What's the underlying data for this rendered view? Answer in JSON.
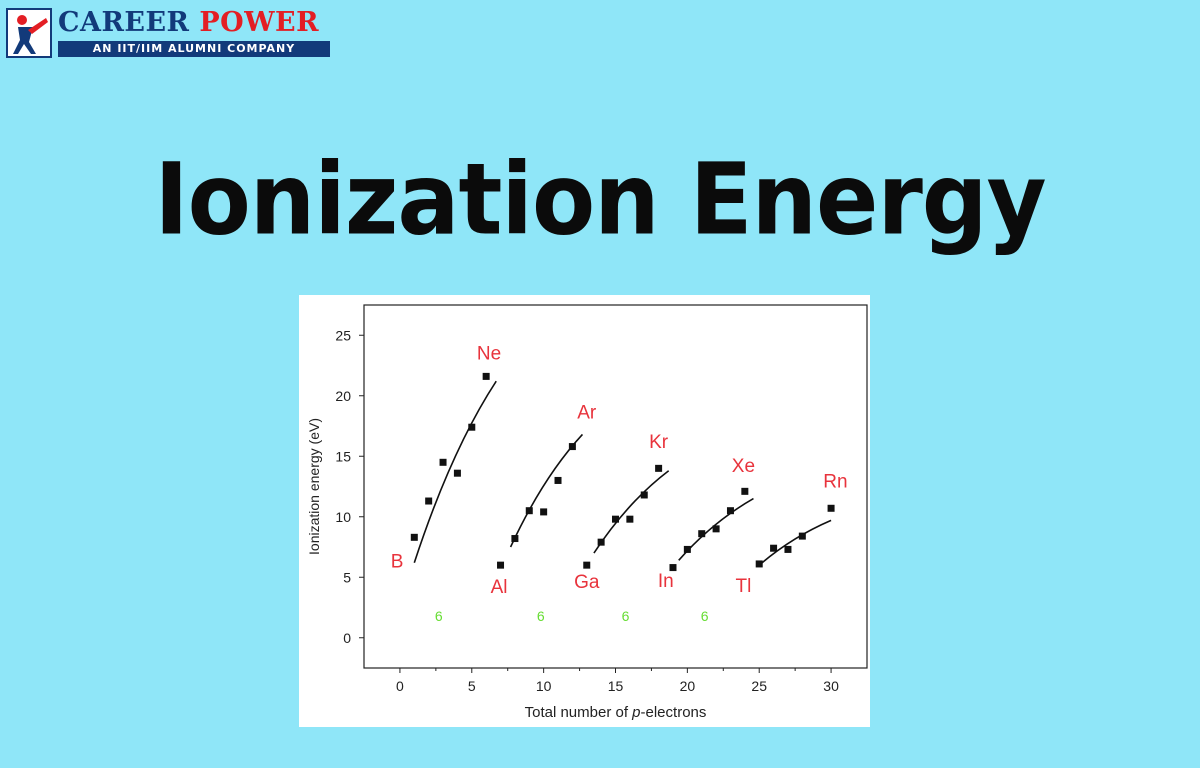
{
  "logo": {
    "brand_main": "CAREER ",
    "brand_accent": "POWER",
    "tagline": "AN IIT/IIM ALUMNI COMPANY",
    "icon": "career-power-logo-icon"
  },
  "page_title": "Ionization Energy",
  "colors": {
    "background": "#8fe6f8",
    "brand_blue": "#123a7a",
    "brand_red": "#e31e24",
    "element_label": "#e8333c",
    "count_label": "#66dd33"
  },
  "chart_data": {
    "type": "scatter",
    "title": "",
    "xlabel_prefix": "Total number of ",
    "xlabel_italic": "p",
    "xlabel_suffix": "-electrons",
    "ylabel": "Ionization energy (eV)",
    "xlim": [
      -2.5,
      32.5
    ],
    "ylim": [
      -2.5,
      27.5
    ],
    "x_ticks": [
      0,
      5,
      10,
      15,
      20,
      25,
      30
    ],
    "y_ticks": [
      0,
      5,
      10,
      15,
      20,
      25
    ],
    "grid": false,
    "series": [
      {
        "start_label": "B",
        "end_label": "Ne",
        "x": [
          1,
          2,
          3,
          4,
          5,
          6
        ],
        "y": [
          8.3,
          11.3,
          14.5,
          13.6,
          17.4,
          21.6
        ],
        "fit_x": [
          1,
          6.7
        ],
        "fit_y": [
          6.2,
          21.2
        ]
      },
      {
        "start_label": "Al",
        "end_label": "Ar",
        "x": [
          7,
          8,
          9,
          10,
          11,
          12
        ],
        "y": [
          6.0,
          8.2,
          10.5,
          10.4,
          13.0,
          15.8
        ],
        "fit_x": [
          7.7,
          12.7
        ],
        "fit_y": [
          7.5,
          16.8
        ]
      },
      {
        "start_label": "Ga",
        "end_label": "Kr",
        "x": [
          13,
          14,
          15,
          16,
          17,
          18
        ],
        "y": [
          6.0,
          7.9,
          9.8,
          9.8,
          11.8,
          14.0
        ],
        "fit_x": [
          13.5,
          18.7
        ],
        "fit_y": [
          7.0,
          13.8
        ]
      },
      {
        "start_label": "In",
        "end_label": "Xe",
        "x": [
          19,
          20,
          21,
          22,
          23,
          24
        ],
        "y": [
          5.8,
          7.3,
          8.6,
          9.0,
          10.5,
          12.1
        ],
        "fit_x": [
          19.4,
          24.6
        ],
        "fit_y": [
          6.4,
          11.5
        ]
      },
      {
        "start_label": "Tl",
        "end_label": "Rn",
        "x": [
          25,
          26,
          27,
          28,
          30
        ],
        "y": [
          6.1,
          7.4,
          7.3,
          8.4,
          10.7
        ],
        "fit_x": [
          25,
          30
        ],
        "fit_y": [
          6.0,
          9.7
        ]
      }
    ],
    "annotations": [
      {
        "text": "6",
        "x": 2.7,
        "y": 1.4
      },
      {
        "text": "6",
        "x": 9.8,
        "y": 1.4
      },
      {
        "text": "6",
        "x": 15.7,
        "y": 1.4
      },
      {
        "text": "6",
        "x": 21.2,
        "y": 1.4
      }
    ],
    "element_labels": [
      {
        "text": "B",
        "x": -0.2,
        "y": 5.8
      },
      {
        "text": "Ne",
        "x": 6.2,
        "y": 23.0
      },
      {
        "text": "Al",
        "x": 6.9,
        "y": 3.7
      },
      {
        "text": "Ar",
        "x": 13.0,
        "y": 18.1
      },
      {
        "text": "Ga",
        "x": 13.0,
        "y": 4.1
      },
      {
        "text": "Kr",
        "x": 18.0,
        "y": 15.7
      },
      {
        "text": "In",
        "x": 18.5,
        "y": 4.2
      },
      {
        "text": "Xe",
        "x": 23.9,
        "y": 13.7
      },
      {
        "text": "Tl",
        "x": 23.9,
        "y": 3.8
      },
      {
        "text": "Rn",
        "x": 30.3,
        "y": 12.4
      }
    ]
  }
}
